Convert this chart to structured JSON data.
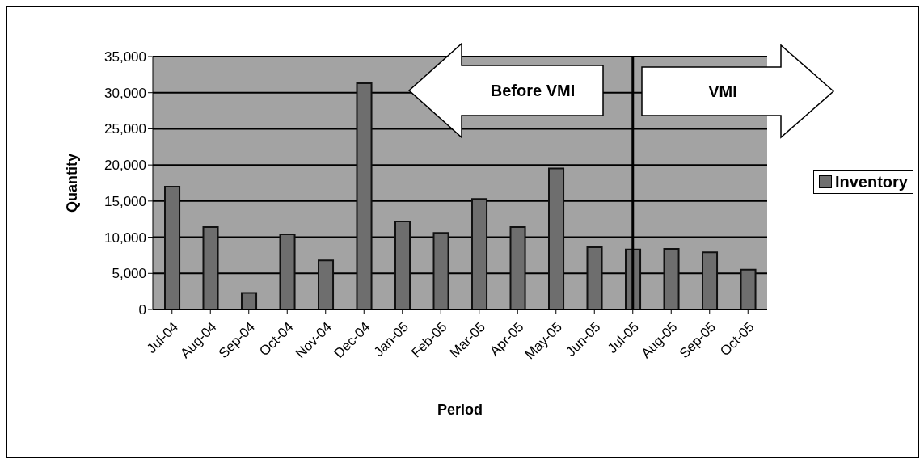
{
  "chart_data": {
    "type": "bar",
    "xlabel": "Period",
    "ylabel": "Quantity",
    "categories": [
      "Jul-04",
      "Aug-04",
      "Sep-04",
      "Oct-04",
      "Nov-04",
      "Dec-04",
      "Jan-05",
      "Feb-05",
      "Mar-05",
      "Apr-05",
      "May-05",
      "Jun-05",
      "Jul-05",
      "Aug-05",
      "Sep-05",
      "Oct-05"
    ],
    "series": [
      {
        "name": "Inventory",
        "color": "#6e6e6e",
        "values": [
          17000,
          11400,
          2300,
          10400,
          6800,
          31300,
          12200,
          10600,
          15300,
          11400,
          19500,
          8600,
          8300,
          8400,
          7900,
          5500
        ]
      }
    ],
    "ylim": [
      0,
      35000
    ],
    "yticks": [
      0,
      {
        "value": 5000,
        "label": "5,000"
      },
      {
        "value": 10000,
        "label": "10,000"
      },
      {
        "value": 15000,
        "label": "15,000"
      },
      {
        "value": 20000,
        "label": "20,000"
      },
      {
        "value": 25000,
        "label": "25,000"
      },
      {
        "value": 30000,
        "label": "30,000"
      },
      {
        "value": 35000,
        "label": "35,000"
      }
    ],
    "grid": "y",
    "legend": "right",
    "ref_lines": [
      {
        "axis": "x",
        "value": "Jul-05",
        "color": "#000000"
      }
    ],
    "annotations": [
      "Before VMI",
      "VMI"
    ]
  }
}
